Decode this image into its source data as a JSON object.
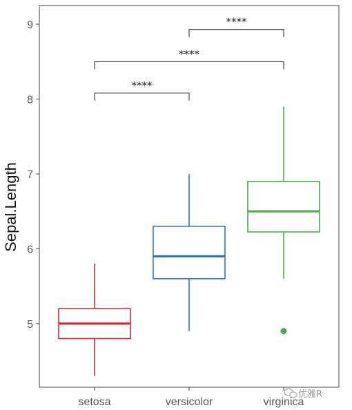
{
  "chart_data": {
    "type": "box",
    "ylabel": "Sepal.Length",
    "xlabel": "",
    "ylim": [
      4.15,
      9.25
    ],
    "yticks": [
      "5",
      "6",
      "7",
      "8",
      "9"
    ],
    "categories": [
      "setosa",
      "versicolor",
      "virginica"
    ],
    "grid": false,
    "legend": "none",
    "boxes": [
      {
        "category": "setosa",
        "color": "#D6262B",
        "min": 4.3,
        "q1": 4.8,
        "median": 5.0,
        "q3": 5.2,
        "max": 5.8,
        "outliers": []
      },
      {
        "category": "versicolor",
        "color": "#2F78B5",
        "min": 4.9,
        "q1": 5.6,
        "median": 5.9,
        "q3": 6.3,
        "max": 7.0,
        "outliers": []
      },
      {
        "category": "virginica",
        "color": "#4DAB4A",
        "min": 5.6,
        "q1": 6.225,
        "median": 6.5,
        "q3": 6.9,
        "max": 7.9,
        "outliers": [
          4.9
        ]
      }
    ],
    "comparisons": [
      {
        "from": "setosa",
        "to": "versicolor",
        "label": "****",
        "level": 8.08
      },
      {
        "from": "setosa",
        "to": "virginica",
        "label": "****",
        "level": 8.5
      },
      {
        "from": "versicolor",
        "to": "virginica",
        "label": "****",
        "level": 8.93
      }
    ]
  },
  "watermark": {
    "icon": "wechat-icon",
    "text": "优雅R"
  }
}
